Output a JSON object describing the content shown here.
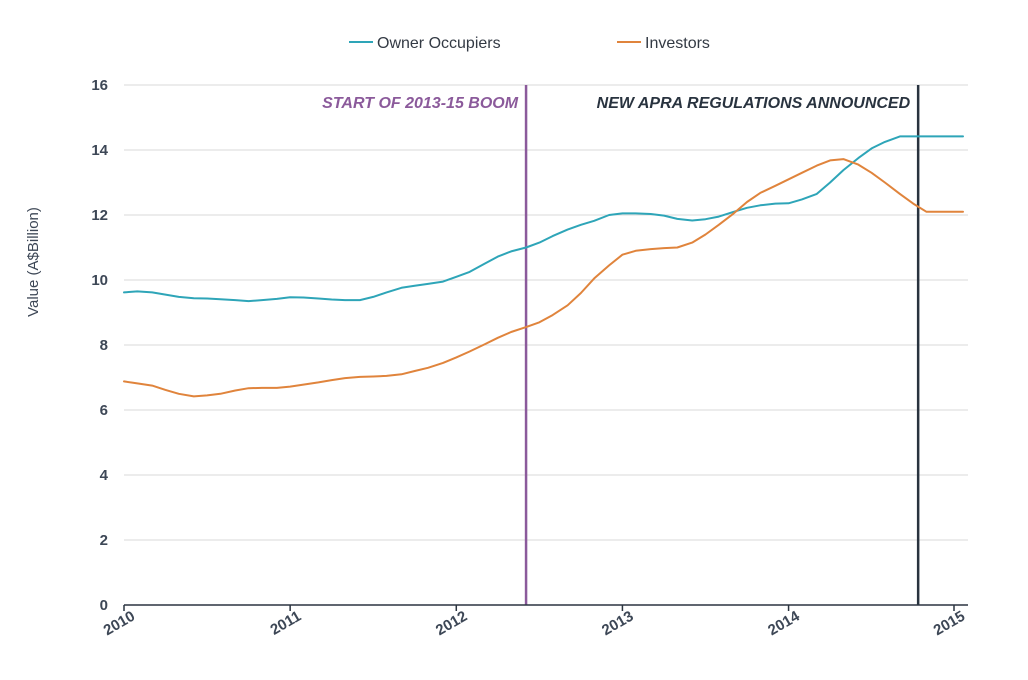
{
  "chart_data": {
    "type": "line",
    "ylabel": "Value (A$Billion)",
    "xlabel": "",
    "xlim": [
      2010,
      2015.08
    ],
    "ylim": [
      0,
      16
    ],
    "y_ticks": [
      0,
      2,
      4,
      6,
      8,
      10,
      12,
      14,
      16
    ],
    "x_ticks": [
      2010,
      2011,
      2012,
      2013,
      2014,
      2015
    ],
    "x_tick_labels": [
      "2010",
      "2011",
      "2012",
      "2013",
      "2014",
      "2015"
    ],
    "grid": "horizontal",
    "legend_position": "top",
    "series": [
      {
        "name": "Owner Occupiers",
        "color": "#2ea5b8",
        "x": [
          2010.0,
          2010.08,
          2010.17,
          2010.25,
          2010.33,
          2010.42,
          2010.5,
          2010.58,
          2010.67,
          2010.75,
          2010.83,
          2010.92,
          2011.0,
          2011.08,
          2011.17,
          2011.25,
          2011.33,
          2011.42,
          2011.5,
          2011.58,
          2011.67,
          2011.75,
          2011.83,
          2011.92,
          2012.0,
          2012.08,
          2012.17,
          2012.25,
          2012.33,
          2012.42,
          2012.5,
          2012.58,
          2012.67,
          2012.75,
          2012.83,
          2012.92,
          2013.0,
          2013.08,
          2013.17,
          2013.25,
          2013.33,
          2013.42,
          2013.5,
          2013.58,
          2013.67,
          2013.75,
          2013.83,
          2013.92,
          2014.0,
          2014.08,
          2014.17,
          2014.25,
          2014.33,
          2014.42,
          2014.5,
          2014.58,
          2014.67,
          2014.75,
          2014.83,
          2014.92,
          2015.0,
          2015.05
        ],
        "values": [
          9.62,
          9.65,
          9.62,
          9.55,
          9.48,
          9.44,
          9.43,
          9.41,
          9.38,
          9.35,
          9.38,
          9.42,
          9.47,
          9.46,
          9.43,
          9.4,
          9.38,
          9.38,
          9.48,
          9.62,
          9.76,
          9.82,
          9.88,
          9.95,
          10.1,
          10.25,
          10.5,
          10.72,
          10.88,
          11.0,
          11.15,
          11.35,
          11.55,
          11.7,
          11.82,
          12.0,
          12.05,
          12.05,
          12.03,
          11.98,
          11.88,
          11.83,
          11.87,
          11.95,
          12.1,
          12.22,
          12.3,
          12.35,
          12.36,
          12.48,
          12.65,
          13.0,
          13.38,
          13.75,
          14.05,
          14.25,
          14.42,
          14.42,
          14.42,
          14.42,
          14.42,
          14.42
        ]
      },
      {
        "name": "Investors",
        "color": "#e0843c",
        "x": [
          2010.0,
          2010.08,
          2010.17,
          2010.25,
          2010.33,
          2010.42,
          2010.5,
          2010.58,
          2010.67,
          2010.75,
          2010.83,
          2010.92,
          2011.0,
          2011.08,
          2011.17,
          2011.25,
          2011.33,
          2011.42,
          2011.5,
          2011.58,
          2011.67,
          2011.75,
          2011.83,
          2011.92,
          2012.0,
          2012.08,
          2012.17,
          2012.25,
          2012.33,
          2012.42,
          2012.5,
          2012.58,
          2012.67,
          2012.75,
          2012.83,
          2012.92,
          2013.0,
          2013.08,
          2013.17,
          2013.25,
          2013.33,
          2013.42,
          2013.5,
          2013.58,
          2013.67,
          2013.75,
          2013.83,
          2013.92,
          2014.0,
          2014.08,
          2014.17,
          2014.25,
          2014.33,
          2014.42,
          2014.5,
          2014.58,
          2014.67,
          2014.75,
          2014.83,
          2014.92,
          2015.0,
          2015.05
        ],
        "values": [
          6.88,
          6.82,
          6.75,
          6.62,
          6.5,
          6.42,
          6.45,
          6.5,
          6.6,
          6.67,
          6.68,
          6.68,
          6.72,
          6.78,
          6.85,
          6.92,
          6.98,
          7.02,
          7.03,
          7.05,
          7.1,
          7.2,
          7.3,
          7.45,
          7.62,
          7.8,
          8.02,
          8.22,
          8.4,
          8.55,
          8.7,
          8.92,
          9.22,
          9.6,
          10.05,
          10.45,
          10.78,
          10.9,
          10.95,
          10.98,
          11.0,
          11.15,
          11.4,
          11.7,
          12.05,
          12.4,
          12.68,
          12.9,
          13.1,
          13.3,
          13.52,
          13.68,
          13.72,
          13.55,
          13.3,
          13.0,
          12.65,
          12.35,
          12.1,
          12.1,
          12.1,
          12.1
        ]
      }
    ],
    "annotations": [
      {
        "x": 2012.42,
        "label": "START OF 2013-15 BOOM",
        "color": "#8b5a9b",
        "label_anchor": "end"
      },
      {
        "x": 2014.78,
        "label": "NEW APRA REGULATIONS ANNOUNCED",
        "color": "#29333f",
        "label_anchor": "end"
      }
    ],
    "axis_color": "#2b3440",
    "grid_color": "#d9d9d9"
  }
}
